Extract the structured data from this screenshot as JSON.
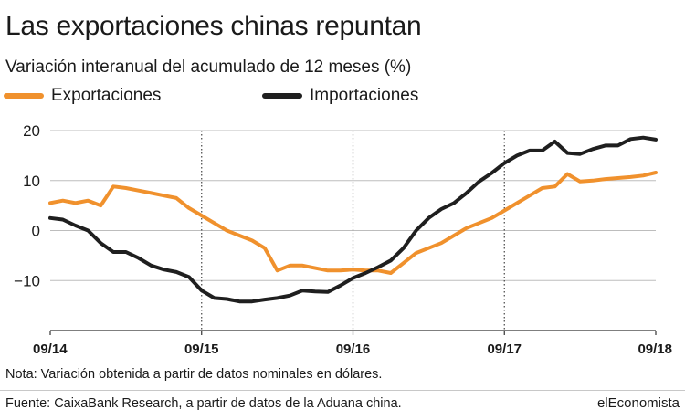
{
  "title": "Las exportaciones chinas repuntan",
  "subtitle": "Variación interanual del acumulado de 12 meses (%)",
  "note": "Nota: Variación obtenida a partir de datos nominales en dólares.",
  "source": "Fuente: CaixaBank Research, a partir de datos de la Aduana china.",
  "brand": "elEconomista",
  "colors": {
    "exports": "#F0912D",
    "imports": "#1F1F1F",
    "grid": "#bdbdbd",
    "axis": "#333333"
  },
  "chart_data": {
    "type": "line",
    "ylim": [
      -20,
      20
    ],
    "y_ticks": [
      20,
      10,
      0,
      -10
    ],
    "y_tick_labels": [
      "20",
      "10",
      "0",
      "−10"
    ],
    "x_ticks": [
      "09/14",
      "09/15",
      "09/16",
      "09/17",
      "09/18"
    ],
    "grid": {
      "horizontal": true,
      "vertical_dotted_at_ticks": true
    },
    "legend_placement": "top-left",
    "x": [
      "09/14",
      "10/14",
      "11/14",
      "12/14",
      "01/15",
      "02/15",
      "03/15",
      "04/15",
      "05/15",
      "06/15",
      "07/15",
      "08/15",
      "09/15",
      "10/15",
      "11/15",
      "12/15",
      "01/16",
      "02/16",
      "03/16",
      "04/16",
      "05/16",
      "06/16",
      "07/16",
      "08/16",
      "09/16",
      "10/16",
      "11/16",
      "12/16",
      "01/17",
      "02/17",
      "03/17",
      "04/17",
      "05/17",
      "06/17",
      "07/17",
      "08/17",
      "09/17",
      "10/17",
      "11/17",
      "12/17",
      "01/18",
      "02/18",
      "03/18",
      "04/18",
      "05/18",
      "06/18",
      "07/18",
      "08/18",
      "09/18"
    ],
    "series": [
      {
        "name": "Exportaciones",
        "values": [
          5.5,
          6.0,
          5.5,
          6.0,
          5.0,
          8.8,
          8.5,
          8.0,
          7.5,
          7.0,
          6.5,
          4.5,
          3.0,
          1.5,
          0.0,
          -1.0,
          -2.0,
          -3.5,
          -8.0,
          -7.0,
          -7.0,
          -7.5,
          -8.0,
          -8.0,
          -7.8,
          -8.0,
          -8.0,
          -8.5,
          -6.5,
          -4.5,
          -3.5,
          -2.5,
          -1.0,
          0.5,
          1.5,
          2.5,
          4.0,
          5.5,
          7.0,
          8.5,
          8.8,
          11.3,
          9.8,
          10.0,
          10.3,
          10.5,
          10.7,
          11.0,
          11.6
        ]
      },
      {
        "name": "Importaciones",
        "values": [
          2.5,
          2.2,
          1.0,
          0.0,
          -2.5,
          -4.3,
          -4.3,
          -5.5,
          -7.0,
          -7.8,
          -8.3,
          -9.3,
          -12.0,
          -13.5,
          -13.7,
          -14.2,
          -14.2,
          -13.8,
          -13.5,
          -13.0,
          -12.0,
          -12.2,
          -12.3,
          -11.0,
          -9.5,
          -8.5,
          -7.3,
          -6.0,
          -3.5,
          0.0,
          2.5,
          4.3,
          5.5,
          7.5,
          9.8,
          11.5,
          13.5,
          15.0,
          16.0,
          16.0,
          17.8,
          15.5,
          15.3,
          16.3,
          17.0,
          17.0,
          18.3,
          18.6,
          18.2
        ]
      }
    ]
  }
}
